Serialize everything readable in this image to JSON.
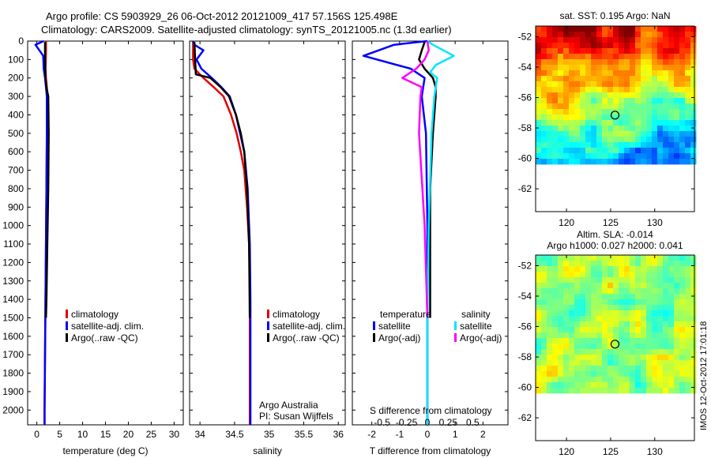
{
  "header": {
    "title_line1": "Argo profile: CS 5903929_26 06-Oct-2012 20121009_417 57.156S 125.498E",
    "title_line2": "Climatology: CARS2009. Satellite-adjusted climatology: synTS_20121005.nc (1.3d earlier)"
  },
  "footer_vertical": "IMOS 12-Oct-2012 17:01:18",
  "colors": {
    "climatology": "#e00000",
    "satellite": "#0000ff",
    "argo": "#000000",
    "salinity_satellite": "#00e5ff",
    "salinity_argo": "#ff00ff"
  },
  "chart_data": [
    {
      "type": "line",
      "panel": "temperature",
      "xlabel": "temperature (deg C)",
      "xlim": [
        -2,
        32
      ],
      "ylim": [
        2080,
        0
      ],
      "xticks": [
        "0",
        "5",
        "10",
        "15",
        "20",
        "25",
        "30"
      ],
      "yticks": [
        "0",
        "100",
        "200",
        "300",
        "400",
        "500",
        "600",
        "700",
        "800",
        "900",
        "1000",
        "1100",
        "1200",
        "1300",
        "1400",
        "1500",
        "1600",
        "1700",
        "1800",
        "1900",
        "2000"
      ],
      "legend": [
        "climatology",
        "satellite-adj. clim.",
        "Argo(..raw -QC)"
      ],
      "series": [
        {
          "name": "climatology",
          "x": [
            2.0,
            2.0,
            1.95,
            1.9,
            2.0,
            2.2,
            2.3,
            2.2,
            2.1,
            2.0,
            1.9,
            1.8,
            1.7,
            1.7
          ],
          "y": [
            0,
            50,
            100,
            150,
            200,
            250,
            300,
            500,
            800,
            1100,
            1400,
            1700,
            2000,
            2080
          ]
        },
        {
          "name": "satellite-adj. clim.",
          "x": [
            1.5,
            -0.3,
            1.4,
            1.5,
            1.8,
            2.0,
            2.2,
            2.2,
            2.1,
            2.0,
            1.9,
            1.8,
            1.7,
            1.7
          ],
          "y": [
            0,
            20,
            80,
            150,
            200,
            250,
            300,
            500,
            800,
            1100,
            1400,
            1700,
            2000,
            2080
          ]
        },
        {
          "name": "Argo(..raw -QC)",
          "x": [
            1.8,
            1.8,
            1.9,
            2.1,
            2.5,
            2.6,
            2.5,
            2.3,
            2.1,
            2.0
          ],
          "y": [
            5,
            100,
            200,
            250,
            300,
            500,
            800,
            1100,
            1400,
            1500
          ]
        }
      ]
    },
    {
      "type": "line",
      "panel": "salinity",
      "xlabel": "salinity",
      "xlim": [
        33.85,
        36.1
      ],
      "ylim": [
        2080,
        0
      ],
      "xticks": [
        "34",
        "34.5",
        "35",
        "35.5",
        "36"
      ],
      "legend": [
        "climatology",
        "satellite-adj. clim.",
        "Argo(..raw -QC)"
      ],
      "annotations": [
        "Argo Australia",
        "PI: Susan Wijffels"
      ],
      "series": [
        {
          "name": "climatology",
          "x": [
            33.9,
            33.9,
            33.92,
            34.05,
            34.2,
            34.34,
            34.45,
            34.53,
            34.59,
            34.64,
            34.68,
            34.71,
            34.72,
            34.72,
            34.72,
            34.72
          ],
          "y": [
            0,
            100,
            150,
            200,
            250,
            300,
            400,
            500,
            600,
            700,
            900,
            1100,
            1300,
            1600,
            2000,
            2080
          ]
        },
        {
          "name": "satellite-adj. clim.",
          "x": [
            33.9,
            33.92,
            34.05,
            33.95,
            34.02,
            34.17,
            34.31,
            34.43,
            34.52,
            34.58,
            34.64,
            34.69,
            34.72,
            34.73,
            34.73,
            34.73
          ],
          "y": [
            0,
            20,
            50,
            100,
            150,
            200,
            250,
            300,
            400,
            500,
            600,
            800,
            1100,
            1400,
            1800,
            2080
          ]
        },
        {
          "name": "Argo(..raw -QC)",
          "x": [
            33.92,
            33.93,
            33.94,
            34.15,
            34.3,
            34.42,
            34.52,
            34.59,
            34.64,
            34.68,
            34.71,
            34.72
          ],
          "y": [
            5,
            100,
            180,
            200,
            250,
            300,
            400,
            500,
            600,
            800,
            1100,
            1500
          ]
        }
      ]
    },
    {
      "type": "line",
      "panel": "differences",
      "xlabel": "T difference from climatology",
      "xlabel_top": "S difference from climatology",
      "xlim": [
        -2.7,
        2.9
      ],
      "ylim": [
        2080,
        0
      ],
      "xticks": [
        "-2",
        "-1",
        "0",
        "1",
        "2"
      ],
      "xticks_top": [
        "-0.5",
        "-0.25",
        "0",
        "0.25",
        "0.5"
      ],
      "legend_left_title": "temperature",
      "legend_right_title": "salinity",
      "legend": [
        "satellite",
        "Argo(-adj)",
        "satellite",
        "Argo(-adj)"
      ],
      "series": [
        {
          "name": "T satellite",
          "x": [
            0,
            -1.2,
            -2.3,
            -0.6,
            -0.1,
            -0.2,
            -0.05,
            0,
            0,
            0
          ],
          "y": [
            0,
            20,
            80,
            150,
            200,
            300,
            500,
            1000,
            1500,
            2080
          ]
        },
        {
          "name": "T Argo(-adj)",
          "x": [
            -0.1,
            -0.2,
            -0.3,
            -0.1,
            0.2,
            0.3,
            0.3,
            0.2,
            0.1,
            0.1,
            0.1
          ],
          "y": [
            5,
            50,
            100,
            150,
            200,
            250,
            300,
            500,
            800,
            1100,
            1500
          ]
        },
        {
          "name": "S satellite",
          "x": [
            0,
            0.2,
            0.95,
            0.3,
            0.1,
            0.35,
            0.25,
            0.15,
            0.05,
            0,
            0
          ],
          "y": [
            0,
            20,
            80,
            130,
            170,
            200,
            300,
            500,
            1000,
            1500,
            2080
          ]
        },
        {
          "name": "S Argo(-adj)",
          "x": [
            0,
            0.05,
            -0.1,
            -0.4,
            -0.9,
            -0.2,
            -0.25,
            -0.3,
            -0.1,
            0
          ],
          "y": [
            0,
            50,
            100,
            150,
            200,
            250,
            300,
            500,
            1000,
            1500
          ]
        }
      ]
    },
    {
      "type": "heatmap",
      "panel": "sst_map",
      "title": "sat. SST: 0.195 Argo: NaN",
      "xlim": [
        116.5,
        134.5
      ],
      "ylim": [
        -63.5,
        -51.3
      ],
      "xticks": [
        "120",
        "125",
        "130"
      ],
      "yticks": [
        "-52",
        "-54",
        "-56",
        "-58",
        "-60",
        "-62"
      ],
      "argo_position": [
        125.5,
        -57.156
      ]
    },
    {
      "type": "heatmap",
      "panel": "sla_map",
      "title_line1": "Altim. SLA: -0.014",
      "title_line2": "Argo h1000: 0.027 h2000: 0.041",
      "xlim": [
        116.5,
        134.5
      ],
      "ylim": [
        -63.5,
        -51.3
      ],
      "xticks": [
        "120",
        "125",
        "130"
      ],
      "yticks": [
        "-52",
        "-54",
        "-56",
        "-58",
        "-60",
        "-62"
      ],
      "argo_position": [
        125.5,
        -57.156
      ]
    }
  ]
}
